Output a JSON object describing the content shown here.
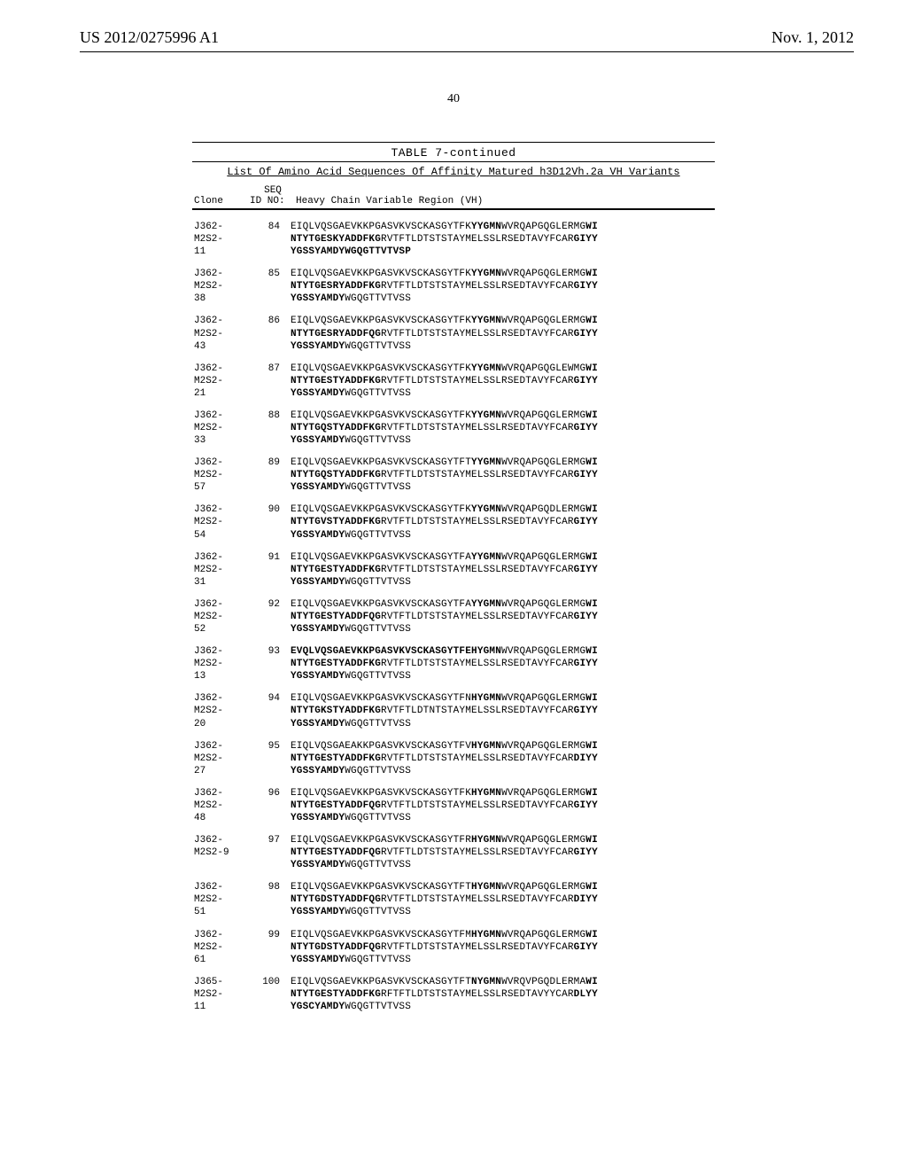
{
  "header": {
    "pub_number": "US 2012/0275996 A1",
    "pub_date": "Nov. 1, 2012",
    "page_number": "40"
  },
  "table": {
    "title": "TABLE 7-continued",
    "caption": "List Of Amino Acid Sequences Of Affinity Matured h3D12Vh.2a VH Variants",
    "col_head_clone": "Clone",
    "col_head_seq_top": "SEQ",
    "col_head_seq_bottom": "ID NO:",
    "col_head_vh": "Heavy Chain Variable Region (VH)",
    "rows": [
      {
        "clone": "J362-\nM2S2-\n11",
        "seq_id": "84",
        "seq_html": "EIQLVQSGAEVKKPGASVKVSCKASGYTFK<b>YYGMN</b>WVRQAPGQGLERMG<b>WI</b>\n<b>NTYTGESKYADDFKG</b>RVTFTLDTSTSTAYMELSSLRSEDTAVYFCAR<b>GIYY</b>\n<b>YGSSYAMDYWGQGTTVTVSP</b>"
      },
      {
        "clone": "J362-\nM2S2-\n38",
        "seq_id": "85",
        "seq_html": "EIQLVQSGAEVKKPGASVKVSCKASGYTFK<b>YYGMN</b>WVRQAPGQGLERMG<b>WI</b>\n<b>NTYTGESRYADDFKG</b>RVTFTLDTSTSTAYMELSSLRSEDTAVYFCAR<b>GIYY</b>\n<b>YGSSYAMDY</b>WGQGTTVTVSS"
      },
      {
        "clone": "J362-\nM2S2-\n43",
        "seq_id": "86",
        "seq_html": "EIQLVQSGAEVKKPGASVKVSCKASGYTFK<b>YYGMN</b>WVRQAPGQGLERMG<b>WI</b>\n<b>NTYTGESRYADDFQG</b>RVTFTLDTSTSTAYMELSSLRSEDTAVYFCAR<b>GIYY</b>\n<b>YGSSYAMDY</b>WGQGTTVTVSS"
      },
      {
        "clone": "J362-\nM2S2-\n21",
        "seq_id": "87",
        "seq_html": "EIQLVQSGAEVKKPGASVKVSCKASGYTFK<b>YYGMN</b>WVRQAPGQGLEWMG<b>WI</b>\n<b>NTYTGESTYADDFKG</b>RVTFTLDTSTSTAYMELSSLRSEDTAVYFCAR<b>GIYY</b>\n<b>YGSSYAMDY</b>WGQGTTVTVSS"
      },
      {
        "clone": "J362-\nM2S2-\n33",
        "seq_id": "88",
        "seq_html": "EIQLVQSGAEVKKPGASVKVSCKASGYTFK<b>YYGMN</b>WVRQAPGQGLERMG<b>WI</b>\n<b>NTYTGQSTYADDFKG</b>RVTFTLDTSTSTAYMELSSLRSEDTAVYFCAR<b>GIYY</b>\n<b>YGSSYAMDY</b>WGQGTTVTVSS"
      },
      {
        "clone": "J362-\nM2S2-\n57",
        "seq_id": "89",
        "seq_html": "EIQLVQSGAEVKKPGASVKVSCKASGYTFT<b>YYGMN</b>WVRQAPGQGLERMG<b>WI</b>\n<b>NTYTGQSTYADDFKG</b>RVTFTLDTSTSTAYMELSSLRSEDTAVYFCAR<b>GIYY</b>\n<b>YGSSYAMDY</b>WGQGTTVTVSS"
      },
      {
        "clone": "J362-\nM2S2-\n54",
        "seq_id": "90",
        "seq_html": "EIQLVQSGAEVKKPGASVKVSCKASGYTFK<b>YYGMN</b>WVRQAPGQDLERMG<b>WI</b>\n<b>NTYTGVSTYADDFKG</b>RVTFTLDTSTSTAYMELSSLRSEDTAVYFCAR<b>GIYY</b>\n<b>YGSSYAMDY</b>WGQGTTVTVSS"
      },
      {
        "clone": "J362-\nM2S2-\n31",
        "seq_id": "91",
        "seq_html": "EIQLVQSGAEVKKPGASVKVSCKASGYTFA<b>YYGMN</b>WVRQAPGQGLERMG<b>WI</b>\n<b>NTYTGESTYADDFKG</b>RVTFTLDTSTSTAYMELSSLRSEDTAVYFCAR<b>GIYY</b>\n<b>YGSSYAMDY</b>WGQGTTVTVSS"
      },
      {
        "clone": "J362-\nM2S2-\n52",
        "seq_id": "92",
        "seq_html": "EIQLVQSGAEVKKPGASVKVSCKASGYTFA<b>YYGMN</b>WVRQAPGQGLERMG<b>WI</b>\n<b>NTYTGESTYADDFQG</b>RVTFTLDTSTSTAYMELSSLRSEDTAVYFCAR<b>GIYY</b>\n<b>YGSSYAMDY</b>WGQGTTVTVSS"
      },
      {
        "clone": "J362-\nM2S2-\n13",
        "seq_id": "93",
        "seq_html": "<b>EVQLVQSGAEVKKPGASVKVSCKASGYTFEHYGMN</b>WVRQAPGQGLERMG<b>WI</b>\n<b>NTYTGESTYADDFKG</b>RVTFTLDTSTSTAYMELSSLRSEDTAVYFCAR<b>GIYY</b>\n<b>YGSSYAMDY</b>WGQGTTVTVSS"
      },
      {
        "clone": "J362-\nM2S2-\n20",
        "seq_id": "94",
        "seq_html": "EIQLVQSGAEVKKPGASVKVSCKASGYTFN<b>HYGMN</b>WVRQAPGQGLERMG<b>WI</b>\n<b>NTYTGKSTYADDFKG</b>RVTFTLDTNTSTAYMELSSLRSEDTAVYFCAR<b>GIYY</b>\n<b>YGSSYAMDY</b>WGQGTTVTVSS"
      },
      {
        "clone": "J362-\nM2S2-\n27",
        "seq_id": "95",
        "seq_html": "EIQLVQSGAEAKKPGASVKVSCKASGYTFV<b>HYGMN</b>WVRQAPGQGLERMG<b>WI</b>\n<b>NTYTGESTYADDFKG</b>RVTFTLDTSTSTAYMELSSLRSEDTAVYFCAR<b>DIYY</b>\n<b>YGSSYAMDY</b>WGQGTTVTVSS"
      },
      {
        "clone": "J362-\nM2S2-\n48",
        "seq_id": "96",
        "seq_html": "EIQLVQSGAEVKKPGASVKVSCKASGYTFK<b>HYGMN</b>WVRQAPGQGLERMG<b>WI</b>\n<b>NTYTGESTYADDFQG</b>RVTFTLDTSTSTAYMELSSLRSEDTAVYFCAR<b>GIYY</b>\n<b>YGSSYAMDY</b>WGQGTTVTVSS"
      },
      {
        "clone": "J362-\nM2S2-9",
        "seq_id": "97",
        "seq_html": "EIQLVQSGAEVKKPGASVKVSCKASGYTFR<b>HYGMN</b>WVRQAPGQGLERMG<b>WI</b>\n<b>NTYTGESTYADDFQG</b>RVTFTLDTSTSTAYMELSSLRSEDTAVYFCAR<b>GIYY</b>\n<b>YGSSYAMDY</b>WGQGTTVTVSS"
      },
      {
        "clone": "J362-\nM2S2-\n51",
        "seq_id": "98",
        "seq_html": "EIQLVQSGAEVKKPGASVKVSCKASGYTFT<b>HYGMN</b>WVRQAPGQGLERMG<b>WI</b>\n<b>NTYTGDSTYADDFQG</b>RVTFTLDTSTSTAYMELSSLRSEDTAVYFCAR<b>DIYY</b>\n<b>YGSSYAMDY</b>WGQGTTVTVSS"
      },
      {
        "clone": "J362-\nM2S2-\n61",
        "seq_id": "99",
        "seq_html": "EIQLVQSGAEVKKPGASVKVSCKASGYTFM<b>HYGMN</b>WVRQAPGQGLERMG<b>WI</b>\n<b>NTYTGDSTYADDFQG</b>RVTFTLDTSTSTAYMELSSLRSEDTAVYFCAR<b>GIYY</b>\n<b>YGSSYAMDY</b>WGQGTTVTVSS"
      },
      {
        "clone": "J365-\nM2S2-\n11",
        "seq_id": "100",
        "seq_html": "EIQLVQSGAEVKKPGASVKVSCKASGYTFT<b>NYGMN</b>WVRQVPGQDLERMA<b>WI</b>\n<b>NTYTGESTYADDFKG</b>RFTFTLDTSTSTAYMELSSLRSEDTAVYYCAR<b>DLYY</b>\n<b>YGSCYAMDY</b>WGQGTTVTVSS"
      }
    ]
  }
}
